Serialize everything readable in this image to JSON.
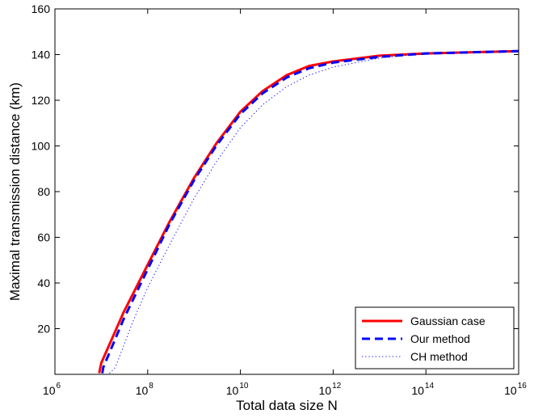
{
  "chart_data": {
    "type": "line",
    "title": "",
    "xlabel": "Total data size N",
    "ylabel": "Maximal transmission distance (km)",
    "x_scale": "log10",
    "xlim": [
      1000000.0,
      1e+16
    ],
    "ylim": [
      0,
      160
    ],
    "x_ticks": [
      {
        "base": "10",
        "exp": "6"
      },
      {
        "base": "10",
        "exp": "8"
      },
      {
        "base": "10",
        "exp": "10"
      },
      {
        "base": "10",
        "exp": "12"
      },
      {
        "base": "10",
        "exp": "14"
      },
      {
        "base": "10",
        "exp": "16"
      }
    ],
    "y_ticks": [
      "20",
      "40",
      "60",
      "80",
      "100",
      "120",
      "140",
      "160"
    ],
    "grid": false,
    "legend_position": "bottom-right",
    "series": [
      {
        "name": "Gaussian case",
        "color": "#ff0000",
        "style": "solid",
        "x": [
          9000000.0,
          10000000.0,
          30000000.0,
          100000000.0,
          300000000.0,
          1000000000.0,
          3000000000.0,
          10000000000.0,
          30000000000.0,
          100000000000.0,
          300000000000.0,
          1000000000000.0,
          10000000000000.0,
          100000000000000.0,
          1000000000000000.0,
          1e+16
        ],
        "y": [
          0.5,
          5,
          27,
          48,
          67,
          86,
          101,
          115,
          124,
          131,
          135,
          137,
          139.5,
          140.5,
          141,
          141.5
        ]
      },
      {
        "name": "Our method",
        "color": "#0000ff",
        "style": "dashed",
        "x": [
          10500000.0,
          11000000.0,
          30000000.0,
          100000000.0,
          300000000.0,
          1000000000.0,
          3000000000.0,
          10000000000.0,
          30000000000.0,
          100000000000.0,
          300000000000.0,
          1000000000000.0,
          10000000000000.0,
          100000000000000.0,
          1000000000000000.0,
          1e+16
        ],
        "y": [
          0.5,
          3,
          24,
          46,
          66,
          85,
          100,
          114,
          123,
          130,
          134,
          136.5,
          139,
          140.5,
          141,
          141.5
        ]
      },
      {
        "name": "CH method",
        "color": "#0000ff",
        "style": "dotted",
        "x": [
          15000000.0,
          20000000.0,
          50000000.0,
          100000000.0,
          300000000.0,
          1000000000.0,
          3000000000.0,
          10000000000.0,
          30000000000.0,
          100000000000.0,
          300000000000.0,
          1000000000000.0,
          10000000000000.0,
          100000000000000.0,
          1000000000000000.0,
          1e+16
        ],
        "y": [
          0.5,
          3,
          24,
          38,
          57,
          77,
          93,
          108,
          118,
          126,
          131,
          134.5,
          138.5,
          140.5,
          141,
          141.5
        ]
      }
    ]
  }
}
